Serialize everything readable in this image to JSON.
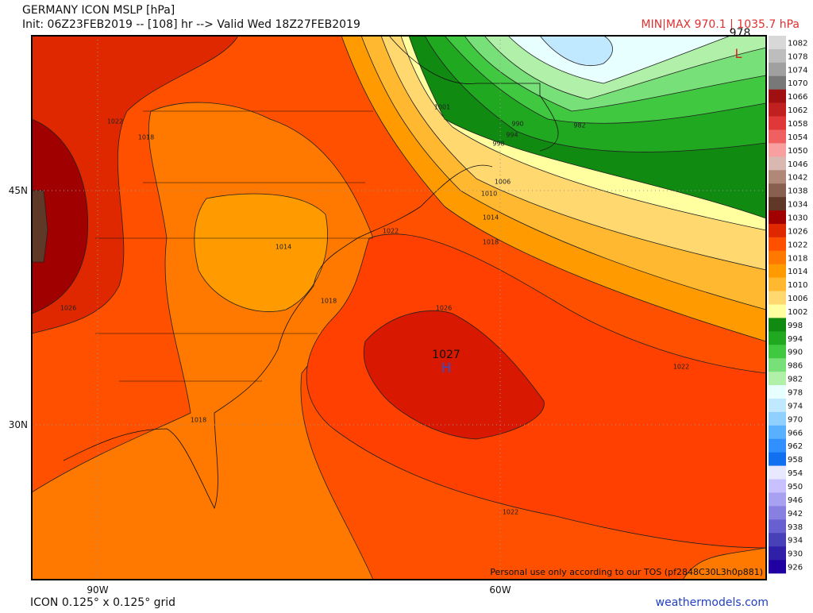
{
  "header": {
    "title": "GERMANY ICON MSLP [hPa]",
    "init": "Init: 06Z23FEB2019 -- [108] hr --> Valid Wed 18Z27FEB2019",
    "minmax": "MIN|MAX 970.1 | 1035.7 hPa"
  },
  "colorbar": {
    "labels": [
      "1082",
      "1078",
      "1074",
      "1070",
      "1066",
      "1062",
      "1058",
      "1054",
      "1050",
      "1046",
      "1042",
      "1038",
      "1034",
      "1030",
      "1026",
      "1022",
      "1018",
      "1014",
      "1010",
      "1006",
      "1002",
      "998",
      "994",
      "990",
      "986",
      "982",
      "978",
      "974",
      "970",
      "966",
      "962",
      "958",
      "954",
      "950",
      "946",
      "942",
      "938",
      "934",
      "930",
      "926"
    ],
    "colors": [
      "#d8d8d8",
      "#bdbdbd",
      "#a0a0a0",
      "#787878",
      "#a01010",
      "#c02020",
      "#e03838",
      "#f06060",
      "#f8a0a0",
      "#d8b8b0",
      "#b08878",
      "#886050",
      "#603828",
      "#a00000",
      "#e02800",
      "#ff5000",
      "#ff7800",
      "#ff9a00",
      "#ffb830",
      "#ffd870",
      "#ffffa0",
      "#108a10",
      "#20a820",
      "#40c840",
      "#78e078",
      "#b0f0a8",
      "#e8ffff",
      "#c0e8ff",
      "#90d0ff",
      "#58b0ff",
      "#3090ff",
      "#1070f0",
      "#e8e8ff",
      "#c8c0ff",
      "#a8a0f0",
      "#8880e0",
      "#6860d0",
      "#4840b8",
      "#3020a8",
      "#2000a0"
    ]
  },
  "map": {
    "lat_labels": [
      "45N",
      "30N"
    ],
    "lon_labels": [
      "90W",
      "60W"
    ],
    "high": {
      "value": "1027",
      "symbol": "H"
    },
    "low": {
      "value": "978",
      "symbol": "L"
    },
    "contour_labels": [
      "1001",
      "990",
      "994",
      "998",
      "982",
      "1006",
      "1010",
      "1014",
      "1018",
      "1022",
      "1026",
      "1022",
      "1022",
      "1018",
      "1022",
      "1014",
      "1018",
      "1026",
      "1018"
    ],
    "disclaimer": "Personal use only according to our TOS (pf2848C30L3h0p881)"
  },
  "footer": {
    "grid": "ICON 0.125° x 0.125° grid",
    "site": "weathermodels.com"
  }
}
